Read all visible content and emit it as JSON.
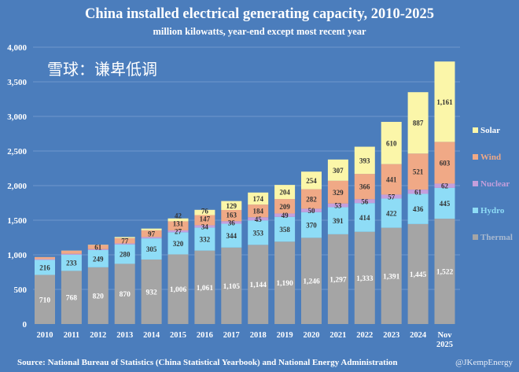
{
  "chart_data": {
    "type": "bar",
    "stacked": true,
    "title": "China installed electrical generating capacity, 2010-2025",
    "subtitle": "million kilowatts, year-end except most recent year",
    "xlabel": "",
    "ylabel": "",
    "ylim": [
      0,
      4000
    ],
    "yticks": [
      "0",
      "500",
      "1,000",
      "1,500",
      "2,000",
      "2,500",
      "3,000",
      "3,500",
      "4,000"
    ],
    "ytick_values": [
      0,
      500,
      1000,
      1500,
      2000,
      2500,
      3000,
      3500,
      4000
    ],
    "grid": true,
    "legend_position": "right",
    "categories": [
      "2010",
      "2011",
      "2012",
      "2013",
      "2014",
      "2015",
      "2016",
      "2017",
      "2018",
      "2019",
      "2020",
      "2021",
      "2022",
      "2023",
      "2024",
      "Nov 2025"
    ],
    "series": [
      {
        "name": "Thermal",
        "color": "#a5a5a5",
        "label_color": "#ffffff",
        "first_labeled": 0,
        "values": [
          710,
          768,
          820,
          870,
          932,
          1006,
          1061,
          1105,
          1144,
          1190,
          1246,
          1297,
          1333,
          1391,
          1445,
          1522
        ]
      },
      {
        "name": "Hydro",
        "color": "#8edcf6",
        "label_color": "#333333",
        "first_labeled": 0,
        "values": [
          216,
          233,
          249,
          280,
          305,
          320,
          332,
          344,
          353,
          358,
          370,
          391,
          414,
          422,
          436,
          445
        ]
      },
      {
        "name": "Nuclear",
        "color": "#c49fdc",
        "label_color": "#333333",
        "first_labeled": 5,
        "values": [
          11,
          13,
          13,
          15,
          20,
          27,
          34,
          36,
          45,
          49,
          50,
          53,
          56,
          57,
          61,
          62
        ]
      },
      {
        "name": "Wind",
        "color": "#f0a986",
        "label_color": "#333333",
        "first_labeled": 2,
        "values": [
          30,
          46,
          61,
          77,
          97,
          131,
          147,
          163,
          184,
          209,
          282,
          329,
          366,
          441,
          521,
          603
        ]
      },
      {
        "name": "Solar",
        "color": "#fbf6a9",
        "label_color": "#333333",
        "first_labeled": 5,
        "values": [
          1,
          2,
          3,
          16,
          25,
          42,
          76,
          129,
          174,
          204,
          254,
          307,
          393,
          610,
          887,
          1161
        ]
      }
    ]
  },
  "footer": {
    "source": "Source: National Bureau of Statistics (China Statistical Yearbook) and National Energy Administration",
    "handle": "@JKempEnergy",
    "watermark": "雪球：谦卑低调"
  }
}
